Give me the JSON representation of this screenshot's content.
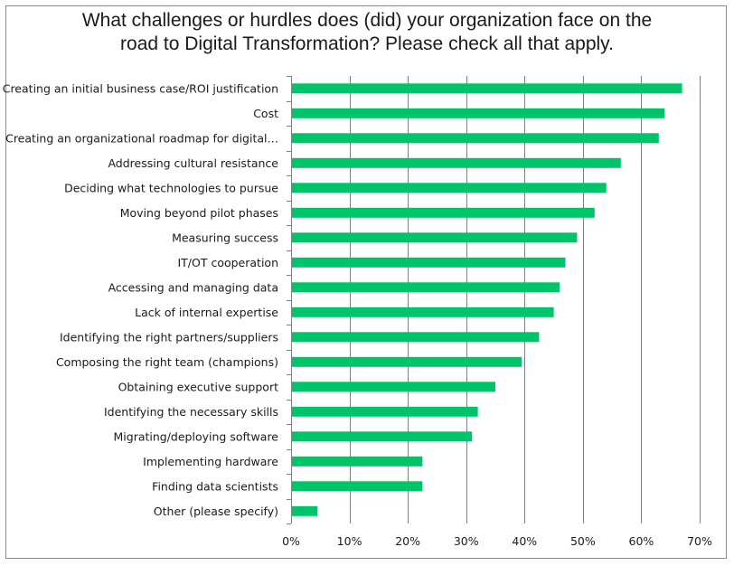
{
  "chart_data": {
    "type": "bar",
    "orientation": "horizontal",
    "title_lines": [
      "What challenges or hurdles does (did) your organization face on the",
      "road to Digital Transformation?  Please check all that apply."
    ],
    "categories": [
      "Creating an initial business case/ROI justification",
      "Cost",
      "Creating an organizational roadmap for digital…",
      "Addressing cultural resistance",
      "Deciding what technologies to pursue",
      "Moving beyond pilot phases",
      "Measuring success",
      "IT/OT cooperation",
      "Accessing and managing data",
      "Lack of internal expertise",
      "Identifying the right partners/suppliers",
      "Composing the right team (champions)",
      "Obtaining executive support",
      "Identifying the necessary skills",
      "Migrating/deploying software",
      "Implementing hardware",
      "Finding data scientists",
      "Other (please specify)"
    ],
    "values": [
      67,
      64,
      63,
      56.5,
      54,
      52,
      49,
      47,
      46,
      45,
      42.5,
      39.5,
      35,
      32,
      31,
      22.5,
      22.5,
      4.5
    ],
    "xlim": [
      0,
      70
    ],
    "xticks": [
      "0%",
      "10%",
      "20%",
      "30%",
      "40%",
      "50%",
      "60%",
      "70%"
    ],
    "unit": "percent",
    "grid": "vertical",
    "bar_color": "#00c46a",
    "grid_color": "#808080"
  }
}
